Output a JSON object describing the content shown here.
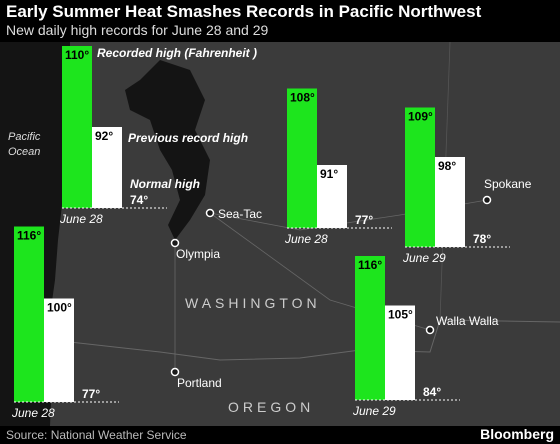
{
  "header": {
    "title": "Early Summer Heat Smashes Records in Pacific Northwest",
    "subtitle": "New daily high records for June 28 and 29"
  },
  "footer": {
    "source": "Source: National Weather Service",
    "logo": "Bloomberg"
  },
  "ocean_label": [
    "Pacific",
    "Ocean"
  ],
  "states": [
    "WASHINGTON",
    "OREGON"
  ],
  "cities": [
    "Sea-Tac",
    "Olympia",
    "Spokane",
    "Portland",
    "Walla Walla"
  ],
  "legend": {
    "recorded": "Recorded high (Fahrenheit )",
    "previous": "Previous record high",
    "normal": "Normal high"
  },
  "chart_data": [
    {
      "type": "bar",
      "date": "June 28",
      "values": [
        110,
        92,
        74
      ],
      "value_labels": [
        "110°",
        "92°",
        "74°"
      ],
      "colors": [
        "#1de51d",
        "#ffffff"
      ]
    },
    {
      "type": "bar",
      "date": "June 28",
      "values": [
        108,
        91,
        77
      ],
      "value_labels": [
        "108°",
        "91°",
        "77°"
      ],
      "colors": [
        "#1de51d",
        "#ffffff"
      ]
    },
    {
      "type": "bar",
      "date": "June 29",
      "values": [
        109,
        98,
        78
      ],
      "value_labels": [
        "109°",
        "98°",
        "78°"
      ],
      "colors": [
        "#1de51d",
        "#ffffff"
      ]
    },
    {
      "type": "bar",
      "date": "June 28",
      "values": [
        116,
        100,
        77
      ],
      "value_labels": [
        "116°",
        "100°",
        "77°"
      ],
      "colors": [
        "#1de51d",
        "#ffffff"
      ]
    },
    {
      "type": "bar",
      "date": "June 29",
      "values": [
        116,
        105,
        84
      ],
      "value_labels": [
        "116°",
        "105°",
        "84°"
      ],
      "colors": [
        "#1de51d",
        "#ffffff"
      ]
    }
  ]
}
